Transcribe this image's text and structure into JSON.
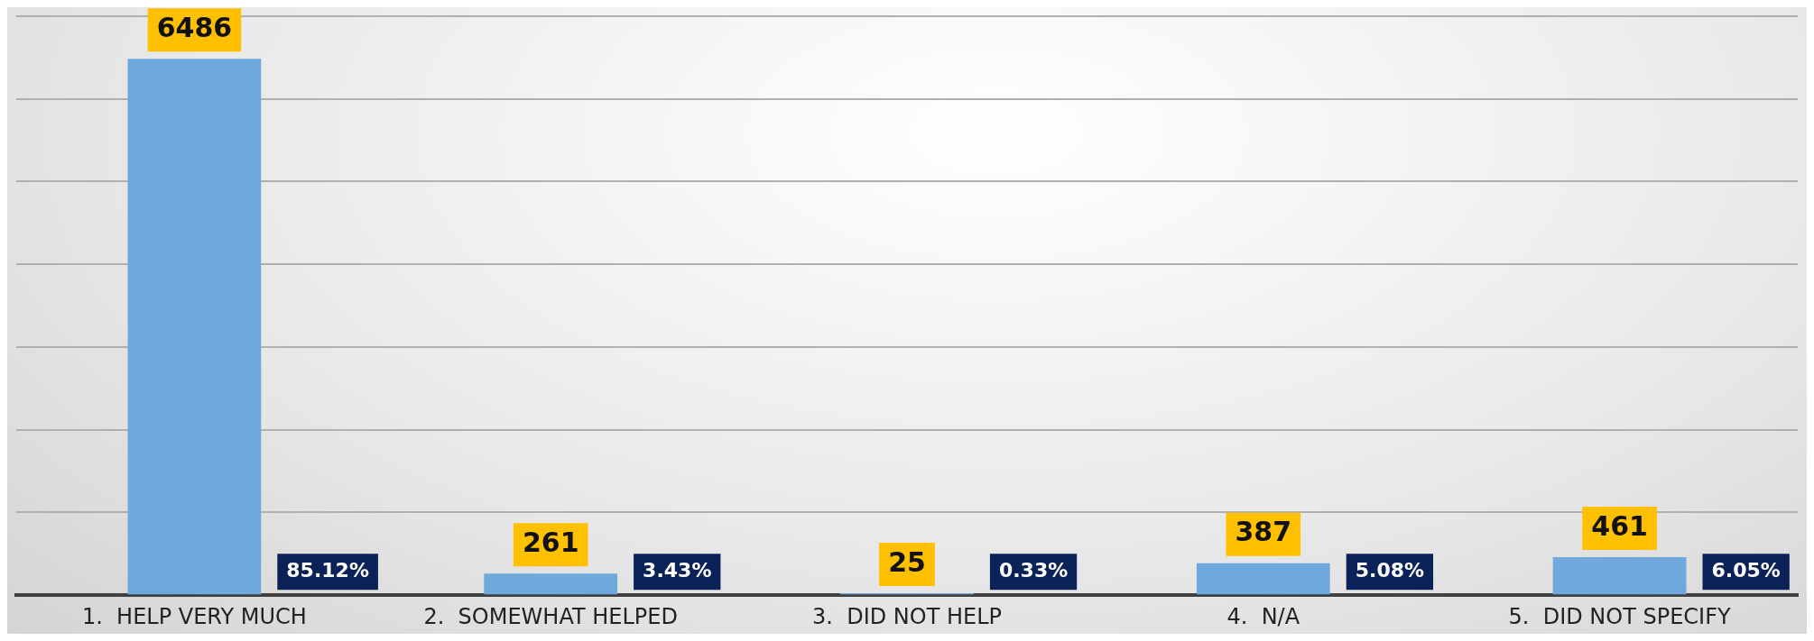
{
  "chart_data": {
    "type": "bar",
    "categories": [
      "1.  HELP VERY MUCH",
      "2.  SOMEWHAT HELPED",
      "3.  DID NOT HELP",
      "4.  N/A",
      "5.  DID NOT SPECIFY"
    ],
    "values": [
      6486,
      261,
      25,
      387,
      461
    ],
    "color": "#6fa8dc",
    "tick_labels": "x",
    "grid": "y",
    "legend": false,
    "data_labels": true,
    "annotations": [
      "85.12%",
      "3.43%",
      "0.33%",
      "5.08%",
      "6.05%"
    ]
  }
}
